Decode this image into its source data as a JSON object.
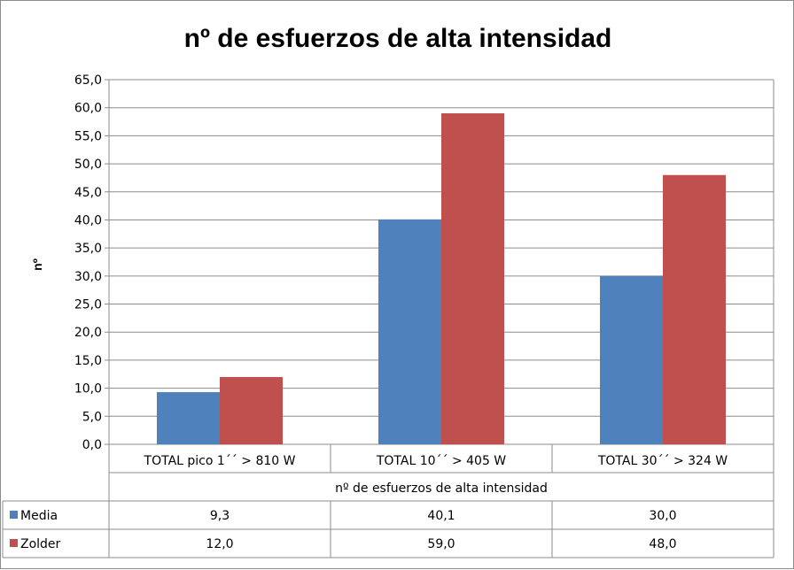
{
  "chart_data": {
    "type": "bar",
    "title": "nº de esfuerzos de alta intensidad",
    "ylabel": "nº",
    "xlabel": "nº de esfuerzos  de alta intensidad",
    "categories": [
      "TOTAL pico 1´´ > 810 W",
      "TOTAL 10´´ > 405 W",
      "TOTAL 30´´ > 324 W"
    ],
    "series": [
      {
        "name": "Media",
        "values": [
          9.3,
          40.1,
          30.0
        ],
        "color": "#4f81bd",
        "labels": [
          "9,3",
          "40,1",
          "30,0"
        ]
      },
      {
        "name": "Zolder",
        "values": [
          12.0,
          59.0,
          48.0
        ],
        "color": "#c0504d",
        "labels": [
          "12,0",
          "59,0",
          "48,0"
        ]
      }
    ],
    "ylim": [
      0,
      65
    ],
    "yticks": [
      "0,0",
      "5,0",
      "10,0",
      "15,0",
      "20,0",
      "25,0",
      "30,0",
      "35,0",
      "40,0",
      "45,0",
      "50,0",
      "55,0",
      "60,0",
      "65,0"
    ],
    "grid": true,
    "legend": "data-table"
  }
}
